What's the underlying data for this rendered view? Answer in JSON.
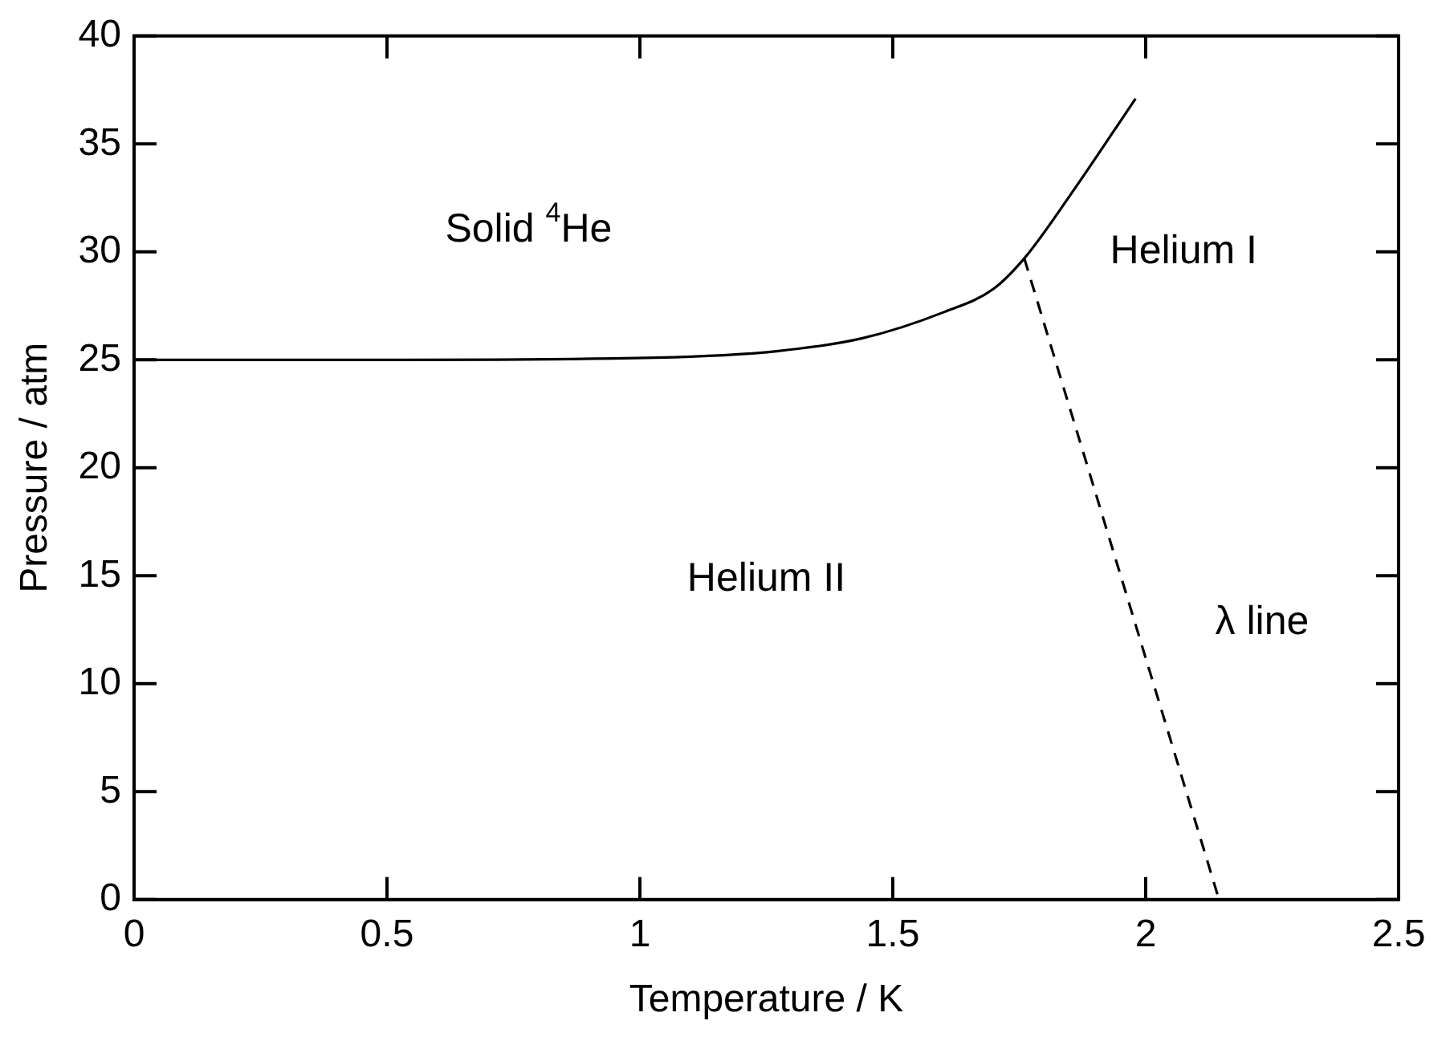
{
  "chart_data": {
    "type": "line",
    "xlabel": "Temperature / K",
    "ylabel": "Pressure / atm",
    "xlim": [
      0,
      2.5
    ],
    "xticks": [
      0,
      0.5,
      1,
      1.5,
      2,
      2.5
    ],
    "ylim": [
      0,
      40
    ],
    "yticks": [
      0,
      5,
      10,
      15,
      20,
      25,
      30,
      35,
      40
    ],
    "grid": false,
    "legend": false,
    "marker": "none",
    "series": [
      {
        "color": "#000000",
        "line_style": "solid",
        "x": [
          0,
          0.5,
          1.03,
          1.27,
          1.44,
          1.6,
          1.7,
          1.76,
          1.85,
          1.98
        ],
        "values": [
          25,
          25,
          25.1,
          25.4,
          26,
          27.2,
          28.3,
          29.7,
          32.6,
          37.1
        ]
      },
      {
        "color": "#000000",
        "line_style": "dashed",
        "x": [
          1.76,
          2.145
        ],
        "values": [
          29.7,
          0
        ]
      }
    ],
    "annotations": [
      "Solid $^{4}$He",
      "Helium I",
      "Helium II",
      "λ line"
    ]
  }
}
